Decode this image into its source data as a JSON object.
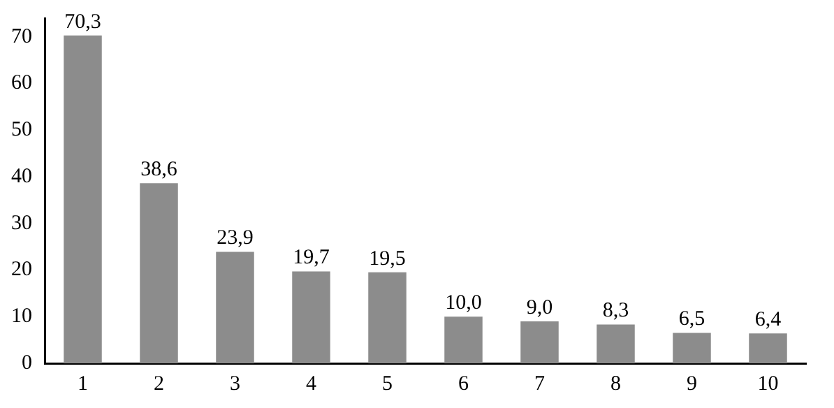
{
  "chart_data": {
    "type": "bar",
    "categories": [
      "1",
      "2",
      "3",
      "4",
      "5",
      "6",
      "7",
      "8",
      "9",
      "10"
    ],
    "values": [
      70.3,
      38.6,
      23.9,
      19.7,
      19.5,
      10.0,
      9.0,
      8.3,
      6.5,
      6.4
    ],
    "value_labels": [
      "70,3",
      "38,6",
      "23,9",
      "19,7",
      "19,5",
      "10,0",
      "9,0",
      "8,3",
      "6,5",
      "6,4"
    ],
    "color": "#8c8c8c",
    "ylim": [
      0,
      74
    ],
    "yticks": [
      0,
      10,
      20,
      30,
      40,
      50,
      60,
      70
    ],
    "grid": false,
    "legend": false
  }
}
